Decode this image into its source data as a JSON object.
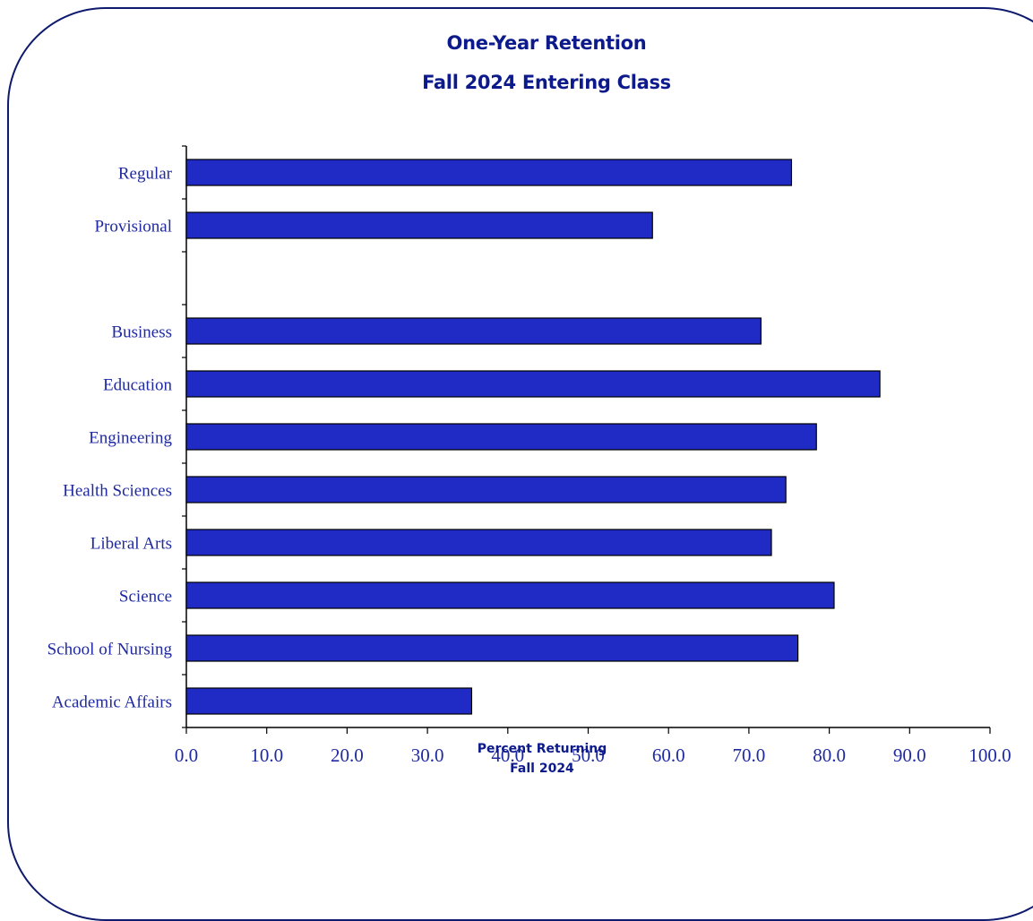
{
  "chart_data": {
    "type": "bar",
    "orientation": "horizontal",
    "title": "One-Year Retention",
    "subtitle": "Fall 2024 Entering Class",
    "xlabel": "Percent Returning",
    "xlabel_line2": "Fall 2024",
    "ylabel": "",
    "categories": [
      "Regular",
      "Provisional",
      "",
      "Business",
      "Education",
      "Engineering",
      "Health Sciences",
      "Liberal Arts",
      "Science",
      "School of Nursing",
      "Academic Affairs"
    ],
    "values": [
      75.3,
      58.0,
      null,
      71.5,
      86.3,
      78.4,
      74.6,
      72.8,
      80.6,
      76.1,
      35.5
    ],
    "xlim": [
      0,
      100
    ],
    "xticks": [
      "0.0",
      "10.0",
      "20.0",
      "30.0",
      "40.0",
      "50.0",
      "60.0",
      "70.0",
      "80.0",
      "90.0",
      "100.0"
    ],
    "grid": false,
    "legend": "none",
    "colors": {
      "bar": "#1f2bc4",
      "bar_outline": "#000000",
      "text": "#1f2aa0",
      "title": "#0d1a8c",
      "frame": "#0d1a6e"
    }
  }
}
